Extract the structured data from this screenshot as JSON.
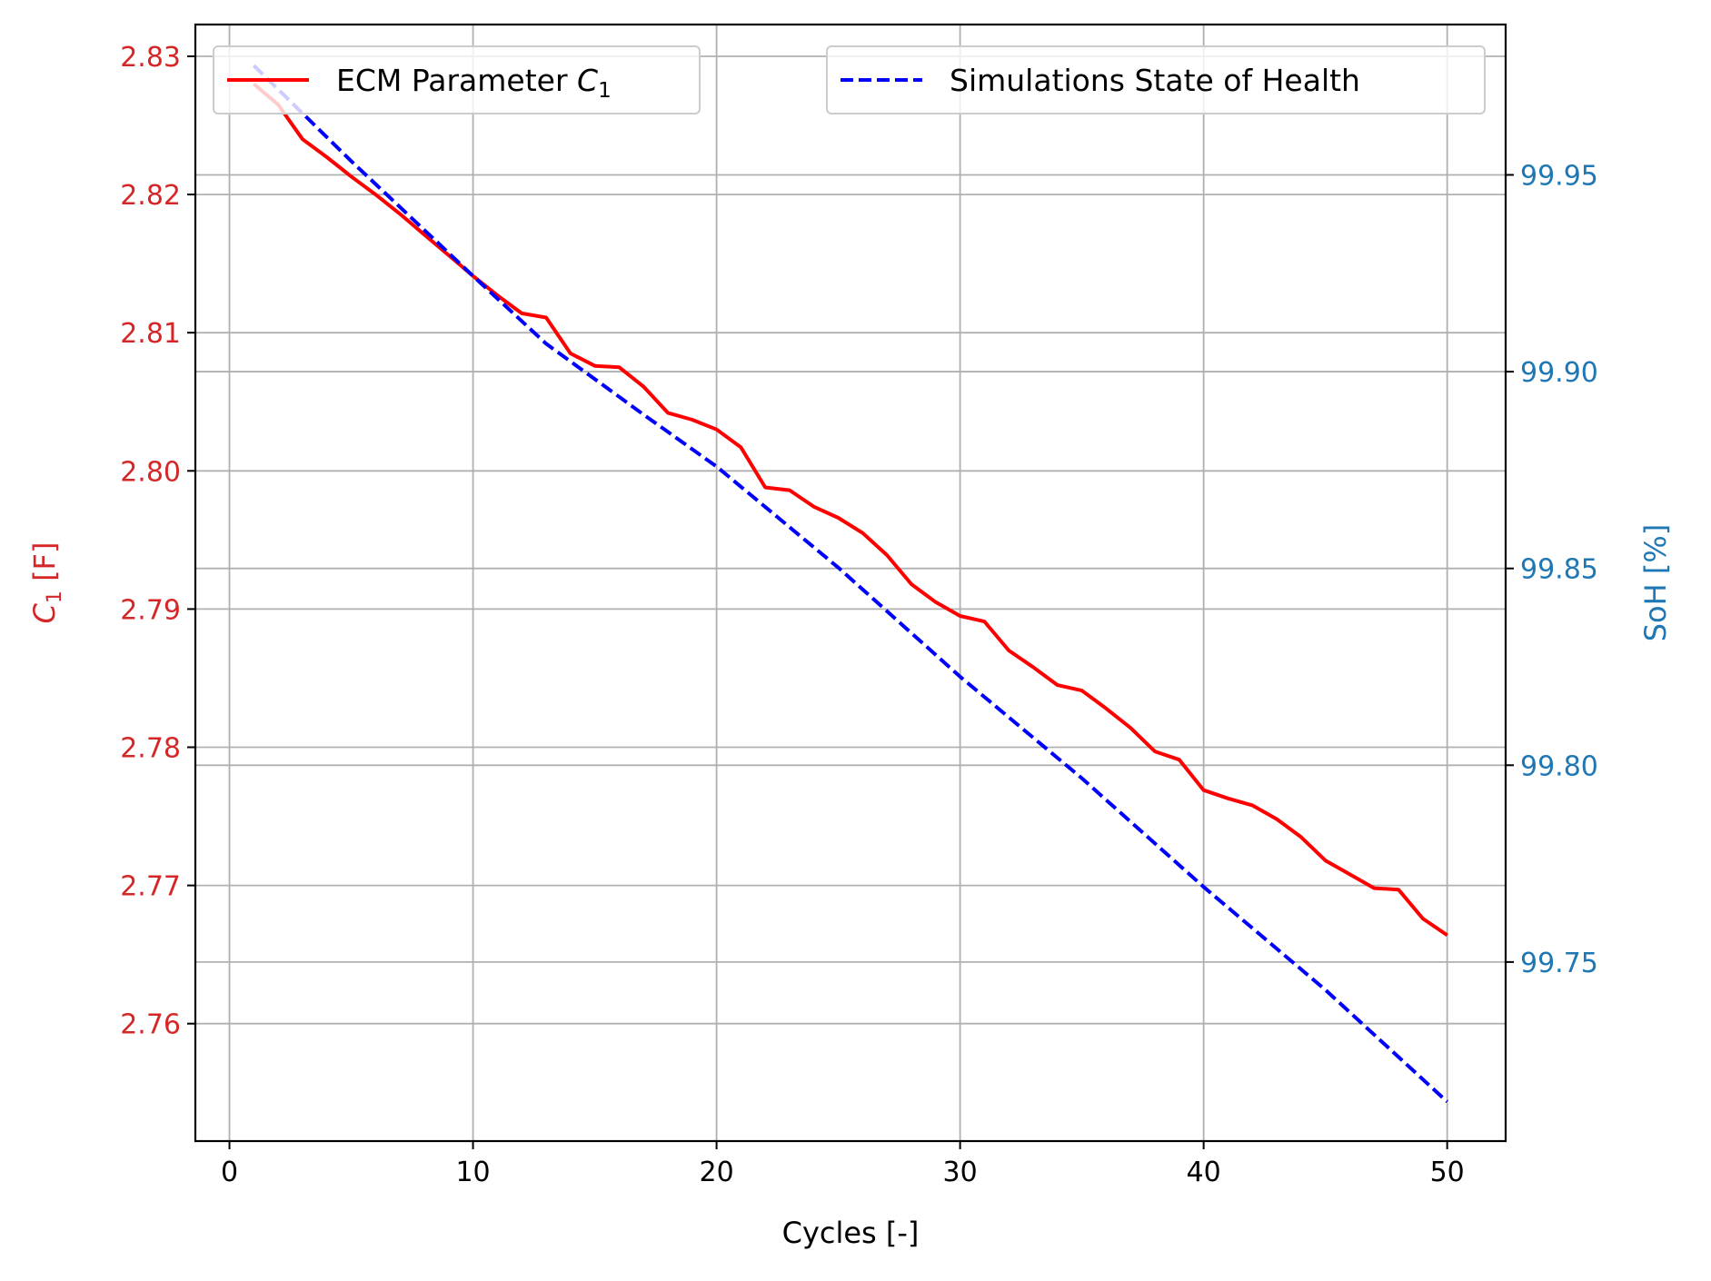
{
  "chart_data": {
    "type": "line",
    "x_label": "Cycles [-]",
    "x_ticks": [
      0,
      10,
      20,
      30,
      40,
      50
    ],
    "xlim": [
      -1.4,
      52.4
    ],
    "grid": true,
    "left_axis": {
      "label_main": "C",
      "label_sub": "1",
      "label_unit": " [F]",
      "color": "#d62728",
      "ylim": [
        2.7515,
        2.8323
      ],
      "ticks": [
        "2.76",
        "2.77",
        "2.78",
        "2.79",
        "2.80",
        "2.81",
        "2.82",
        "2.83"
      ],
      "tick_values": [
        2.76,
        2.77,
        2.78,
        2.79,
        2.8,
        2.81,
        2.82,
        2.83
      ]
    },
    "right_axis": {
      "label": "SoH [%]",
      "color": "#1f77b4",
      "ylim": [
        99.7045,
        99.9882
      ],
      "ticks": [
        "99.75",
        "99.80",
        "99.85",
        "99.90",
        "99.95"
      ],
      "tick_values": [
        99.75,
        99.8,
        99.85,
        99.9,
        99.95
      ]
    },
    "series": [
      {
        "name_main": "ECM Parameter ",
        "name_italic": "C",
        "name_sub": "1",
        "axis": "left",
        "color": "#ff0000",
        "style": "solid",
        "x": [
          1,
          2,
          3,
          4,
          5,
          6,
          7,
          8,
          9,
          10,
          11,
          12,
          13,
          14,
          15,
          16,
          17,
          18,
          19,
          20,
          21,
          22,
          23,
          24,
          25,
          26,
          27,
          28,
          29,
          30,
          31,
          32,
          33,
          34,
          35,
          36,
          37,
          38,
          39,
          40,
          41,
          42,
          43,
          44,
          45,
          46,
          47,
          48,
          49,
          50
        ],
        "values": [
          2.828,
          2.8265,
          2.824,
          2.8227,
          2.8213,
          2.82,
          2.8186,
          2.8171,
          2.8156,
          2.8141,
          2.8127,
          2.8114,
          2.8111,
          2.8085,
          2.8076,
          2.8075,
          2.8061,
          2.8042,
          2.8037,
          2.803,
          2.8017,
          2.7988,
          2.7986,
          2.7974,
          2.7966,
          2.7955,
          2.7939,
          2.7918,
          2.7905,
          2.7895,
          2.7891,
          2.787,
          2.7858,
          2.7845,
          2.7841,
          2.7828,
          2.7814,
          2.7797,
          2.7791,
          2.7769,
          2.7763,
          2.7758,
          2.7748,
          2.7735,
          2.7718,
          2.7708,
          2.7698,
          2.7697,
          2.7676,
          2.7664
        ]
      },
      {
        "name": "Simulations State of Health",
        "axis": "right",
        "color": "#0000ff",
        "style": "dashed",
        "x": [
          1,
          5,
          10,
          13,
          17,
          20,
          25,
          30,
          35,
          40,
          45,
          50
        ],
        "values": [
          99.9778,
          99.9535,
          99.9243,
          99.9071,
          99.8891,
          99.8759,
          99.8502,
          99.8225,
          99.7967,
          99.7691,
          99.7429,
          99.7145
        ]
      }
    ],
    "legends": [
      {
        "position": "top-left",
        "series": 0
      },
      {
        "position": "top-right",
        "series": 1
      }
    ]
  }
}
